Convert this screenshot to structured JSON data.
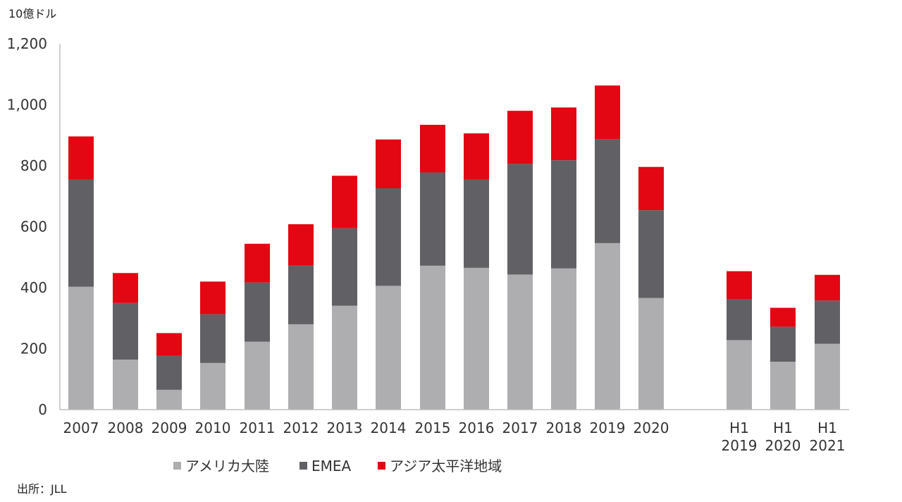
{
  "unit_label": "10億ドル",
  "source_note": "出所：JLL",
  "colors": {
    "americas": "#aeaeb0",
    "emea": "#616165",
    "apac": "#e30613",
    "axis": "#bfbfbf"
  },
  "chart_data": {
    "type": "bar",
    "stacked": true,
    "title": "",
    "ylabel": "10億ドル",
    "xlabel": "",
    "ylim": [
      0,
      1200
    ],
    "yticks": [
      "0",
      "200",
      "400",
      "600",
      "800",
      "1,000",
      "1,200"
    ],
    "ytick_values": [
      0,
      200,
      400,
      600,
      800,
      1000,
      1200
    ],
    "grid": false,
    "legend": "bottom",
    "categories": [
      [
        "2007"
      ],
      [
        "2008"
      ],
      [
        "2009"
      ],
      [
        "2010"
      ],
      [
        "2011"
      ],
      [
        "2012"
      ],
      [
        "2013"
      ],
      [
        "2014"
      ],
      [
        "2015"
      ],
      [
        "2016"
      ],
      [
        "2017"
      ],
      [
        "2018"
      ],
      [
        "2019"
      ],
      [
        "2020"
      ],
      [
        "H1",
        "2019"
      ],
      [
        "H1",
        "2020"
      ],
      [
        "H1",
        "2021"
      ]
    ],
    "series": [
      {
        "name": "アメリカ大陸",
        "color": "#aeaeb0",
        "values": [
          403,
          164,
          65,
          153,
          223,
          280,
          341,
          406,
          472,
          465,
          443,
          463,
          546,
          366,
          228,
          157,
          216
        ]
      },
      {
        "name": "EMEA",
        "color": "#616165",
        "values": [
          351,
          186,
          112,
          160,
          194,
          193,
          254,
          320,
          306,
          289,
          363,
          355,
          341,
          288,
          135,
          115,
          142
        ]
      },
      {
        "name": "アジア太平洋地域",
        "color": "#e30613",
        "values": [
          142,
          98,
          74,
          107,
          127,
          135,
          172,
          160,
          156,
          152,
          174,
          173,
          176,
          142,
          91,
          62,
          84
        ]
      }
    ]
  }
}
